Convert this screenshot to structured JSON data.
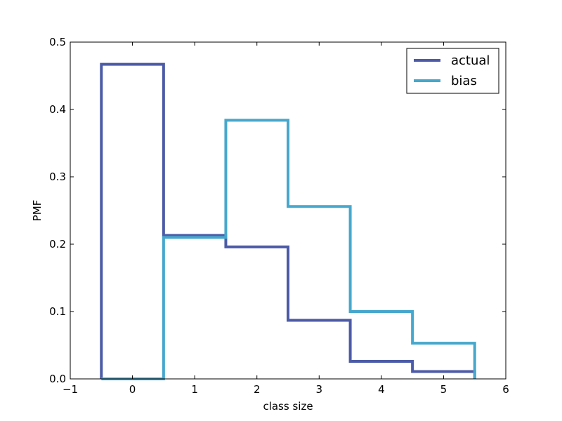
{
  "chart_data": {
    "type": "line",
    "drawstyle": "steps",
    "title": "",
    "xlabel": "class size",
    "ylabel": "PMF",
    "xlim": [
      -1,
      6
    ],
    "ylim": [
      0,
      0.5
    ],
    "xticks": [
      -1,
      0,
      1,
      2,
      3,
      4,
      5,
      6
    ],
    "xtick_labels": [
      "−1",
      "0",
      "1",
      "2",
      "3",
      "4",
      "5",
      "6"
    ],
    "yticks": [
      0.0,
      0.1,
      0.2,
      0.3,
      0.4,
      0.5
    ],
    "ytick_labels": [
      "0.0",
      "0.1",
      "0.2",
      "0.3",
      "0.4",
      "0.5"
    ],
    "grid": false,
    "legend_position": "top-right",
    "series": [
      {
        "name": "actual",
        "color": "#4C5BA7",
        "x": [
          0,
          1,
          2,
          3,
          4,
          5
        ],
        "values": [
          0.467,
          0.213,
          0.196,
          0.087,
          0.026,
          0.011
        ]
      },
      {
        "name": "bias",
        "color": "#46A7CD",
        "x": [
          0,
          1,
          2,
          3,
          4,
          5
        ],
        "values": [
          0.0,
          0.21,
          0.384,
          0.256,
          0.1,
          0.053
        ]
      }
    ]
  }
}
